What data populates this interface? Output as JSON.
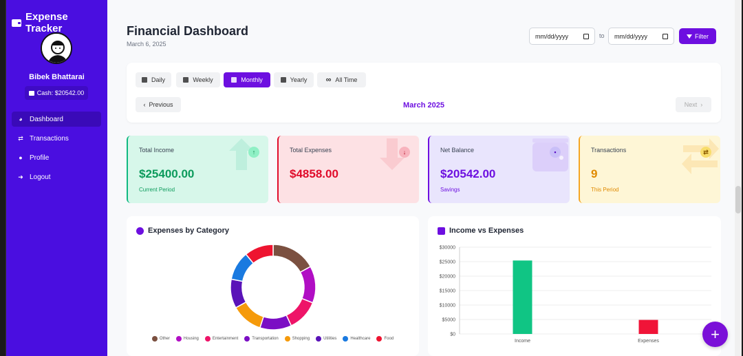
{
  "app": {
    "title": "Expense Tracker"
  },
  "user": {
    "name": "Bibek Bhattarai",
    "cash_label": "Cash: $20542.00"
  },
  "sidebar": {
    "items": [
      {
        "label": "Dashboard",
        "icon": "chart-pie-icon",
        "active": true
      },
      {
        "label": "Transactions",
        "icon": "exchange-icon",
        "active": false
      },
      {
        "label": "Profile",
        "icon": "user-icon",
        "active": false
      },
      {
        "label": "Logout",
        "icon": "logout-icon",
        "active": false
      }
    ]
  },
  "header": {
    "title": "Financial Dashboard",
    "date": "March 6, 2025"
  },
  "filters": {
    "from_placeholder": "mm/dd/yyyy",
    "to_label": "to",
    "to_placeholder": "mm/dd/yyyy",
    "filter_label": "Filter"
  },
  "period": {
    "tabs": [
      {
        "label": "Daily",
        "active": false
      },
      {
        "label": "Weekly",
        "active": false
      },
      {
        "label": "Monthly",
        "active": true
      },
      {
        "label": "Yearly",
        "active": false
      },
      {
        "label": "All Time",
        "active": false
      }
    ],
    "previous_label": "Previous",
    "next_label": "Next",
    "current": "March 2025"
  },
  "stats": [
    {
      "label": "Total Income",
      "value": "$25400.00",
      "sub": "Current Period",
      "color": "#0c9b5c",
      "bg": "#d7f7ea",
      "border": "#10b981",
      "icon": "arrow-up-icon"
    },
    {
      "label": "Total Expenses",
      "value": "$4858.00",
      "sub": "",
      "color": "#e00b2a",
      "bg": "#fde1e4",
      "border": "#e00b2a",
      "icon": "arrow-down-icon"
    },
    {
      "label": "Net Balance",
      "value": "$20542.00",
      "sub": "Savings",
      "color": "#6d0fe0",
      "bg": "#e9e5fd",
      "border": "#6d0fe0",
      "icon": "wallet-icon"
    },
    {
      "label": "Transactions",
      "value": "9",
      "sub": "This Period",
      "color": "#e08a00",
      "bg": "#fef6d6",
      "border": "#f5a623",
      "icon": "exchange-icon"
    }
  ],
  "charts": {
    "category_title": "Expenses by Category",
    "income_title": "Income vs Expenses"
  },
  "chart_data": [
    {
      "type": "pie",
      "title": "Expenses by Category",
      "categories": [
        "Other",
        "Housing",
        "Entertainment",
        "Transportation",
        "Shopping",
        "Utilities",
        "Healthcare",
        "Food"
      ],
      "values": [
        17,
        14,
        12,
        12,
        12,
        11,
        11,
        11
      ],
      "colors": [
        "#7b5040",
        "#b10ec4",
        "#ee1468",
        "#7b0ec4",
        "#f59a0b",
        "#5a13b8",
        "#1a7ae0",
        "#ee1430"
      ],
      "legend": "bottom"
    },
    {
      "type": "bar",
      "title": "Income vs Expenses",
      "categories": [
        "Income",
        "Expenses"
      ],
      "values": [
        25400,
        4858
      ],
      "colors": [
        "#10c584",
        "#f01438"
      ],
      "ylim": [
        0,
        30000
      ],
      "yticks": [
        "$0",
        "$5000",
        "$10000",
        "$15000",
        "$20000",
        "$25000",
        "$30000"
      ],
      "grid": true
    }
  ]
}
